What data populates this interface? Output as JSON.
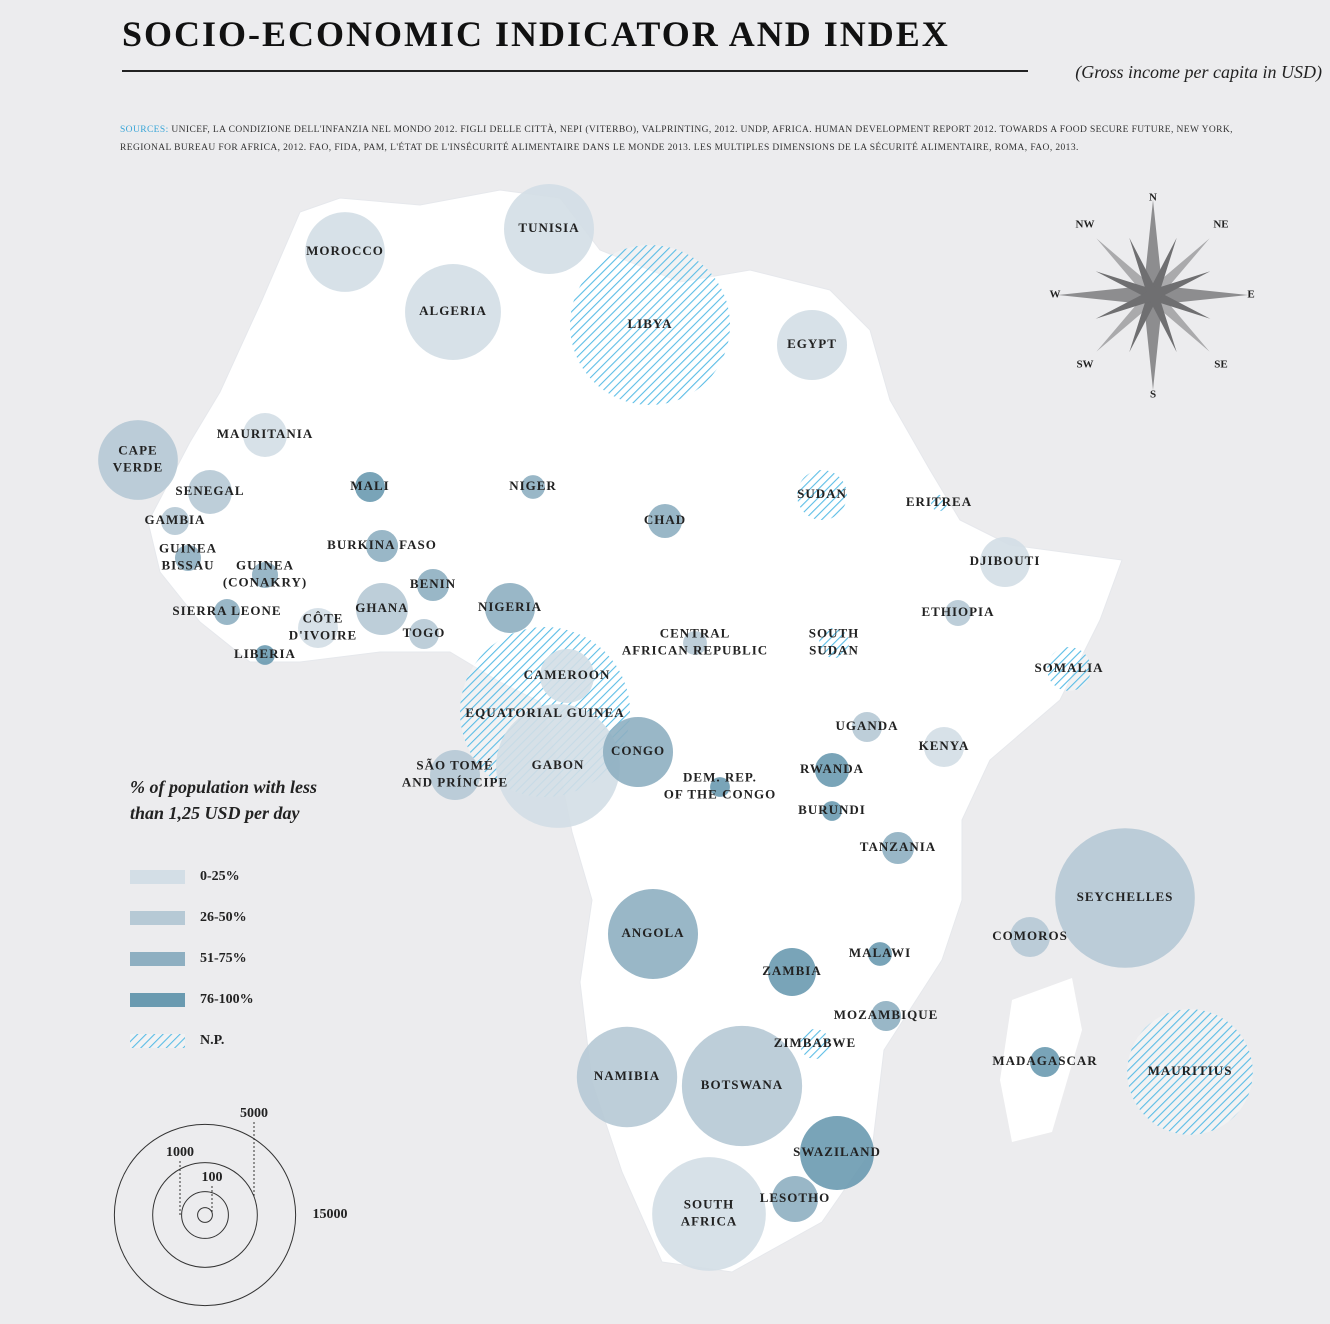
{
  "header": {
    "title": "SOCIO-ECONOMIC INDICATOR AND INDEX",
    "subtitle": "(Gross income per capita in USD)",
    "sources_label": "SOURCES:",
    "sources": "UNICEF, LA CONDIZIONE DELL'INFANZIA NEL MONDO 2012. FIGLI DELLE CITTÀ, NEPI (VITERBO), VALPRINTING, 2012. UNDP, AFRICA. HUMAN DEVELOPMENT REPORT 2012. TOWARDS A FOOD SECURE FUTURE, NEW YORK, REGIONAL BUREAU FOR AFRICA, 2012. FAO, FIDA, PAM, L'ÉTAT DE L'INSÉCURITÉ ALIMENTAIRE DANS LE MONDE 2013. LES MULTIPLES DIMENSIONS DE LA SÉCURITÉ ALIMENTAIRE, ROMA, FAO, 2013."
  },
  "compass": [
    "N",
    "NE",
    "E",
    "SE",
    "S",
    "SW",
    "W",
    "NW"
  ],
  "legend": {
    "title": [
      "% of population with less",
      "than 1,25 USD per day"
    ],
    "classes": [
      {
        "label": "0-25%",
        "color": "#d3dee6",
        "hatched": false
      },
      {
        "label": "26-50%",
        "color": "#b6c9d5",
        "hatched": false
      },
      {
        "label": "51-75%",
        "color": "#8eafc1",
        "hatched": false
      },
      {
        "label": "76-100%",
        "color": "#6a9ab0",
        "hatched": false
      },
      {
        "label": "N.P.",
        "color": "#5bbde6",
        "hatched": true
      }
    ]
  },
  "size_legend": {
    "values": [
      100,
      1000,
      5000,
      15000
    ]
  },
  "countries": [
    {
      "name": [
        "MOROCCO"
      ],
      "income": 2900,
      "class": 0
    },
    {
      "name": [
        "TUNISIA"
      ],
      "income": 3700,
      "class": 0
    },
    {
      "name": [
        "ALGERIA"
      ],
      "income": 4200,
      "class": 0
    },
    {
      "name": [
        "LIBYA"
      ],
      "income": 11700,
      "class": 4
    },
    {
      "name": [
        "EGYPT"
      ],
      "income": 2240,
      "class": 0
    },
    {
      "name": [
        "MAURITANIA"
      ],
      "income": 880,
      "class": 0
    },
    {
      "name": [
        "CAPE",
        "VERDE"
      ],
      "income": 2900,
      "class": 1
    },
    {
      "name": [
        "SENEGAL"
      ],
      "income": 880,
      "class": 1
    },
    {
      "name": [
        "MALI"
      ],
      "income": 410,
      "class": 3
    },
    {
      "name": [
        "NIGER"
      ],
      "income": 260,
      "class": 2
    },
    {
      "name": [
        "GAMBIA"
      ],
      "income": 360,
      "class": 1
    },
    {
      "name": [
        "CHAD"
      ],
      "income": 530,
      "class": 2
    },
    {
      "name": [
        "SUDAN"
      ],
      "income": 1140,
      "class": 4
    },
    {
      "name": [
        "ERITREA"
      ],
      "income": 120,
      "class": 4
    },
    {
      "name": [
        "GUINEA",
        "BISSAU"
      ],
      "income": 310,
      "class": 2
    },
    {
      "name": [
        "GUINEA",
        "(CONAKRY)"
      ],
      "income": 310,
      "class": 2
    },
    {
      "name": [
        "BURKINA FASO"
      ],
      "income": 470,
      "class": 2
    },
    {
      "name": [
        "DJIBOUTI"
      ],
      "income": 1140,
      "class": 0
    },
    {
      "name": [
        "BENIN"
      ],
      "income": 470,
      "class": 2
    },
    {
      "name": [
        "SIERRA LEONE"
      ],
      "income": 310,
      "class": 2
    },
    {
      "name": [
        "GHANA"
      ],
      "income": 1230,
      "class": 1
    },
    {
      "name": [
        "NIGERIA"
      ],
      "income": 1140,
      "class": 2
    },
    {
      "name": [
        "ETHIOPIA"
      ],
      "income": 310,
      "class": 1
    },
    {
      "name": [
        "CÔTE",
        "D'IVOIRE"
      ],
      "income": 730,
      "class": 0
    },
    {
      "name": [
        "TOGO"
      ],
      "income": 410,
      "class": 1
    },
    {
      "name": [
        "CENTRAL",
        "AFRICAN REPUBLIC"
      ],
      "income": 260,
      "class": 1
    },
    {
      "name": [
        "SOUTH",
        "SUDAN"
      ],
      "income": 410,
      "class": 4
    },
    {
      "name": [
        "LIBERIA"
      ],
      "income": 180,
      "class": 3
    },
    {
      "name": [
        "SOMALIA"
      ],
      "income": 880,
      "class": 4
    },
    {
      "name": [
        "EQUATORIAL GUINEA"
      ],
      "income": 13200,
      "class": 4
    },
    {
      "name": [
        "CAMEROON"
      ],
      "income": 1330,
      "class": 0
    },
    {
      "name": [
        "GABON"
      ],
      "income": 7000,
      "class": 0
    },
    {
      "name": [
        "SÃO TOMÉ",
        "AND PRÍNCIPE"
      ],
      "income": 1140,
      "class": 1
    },
    {
      "name": [
        "CONGO"
      ],
      "income": 2240,
      "class": 2
    },
    {
      "name": [
        "UGANDA"
      ],
      "income": 410,
      "class": 1
    },
    {
      "name": [
        "KENYA"
      ],
      "income": 730,
      "class": 0
    },
    {
      "name": [
        "RWANDA"
      ],
      "income": 530,
      "class": 3
    },
    {
      "name": [
        "DEM. REP.",
        "OF THE CONGO"
      ],
      "income": 180,
      "class": 3
    },
    {
      "name": [
        "BURUNDI"
      ],
      "income": 180,
      "class": 3
    },
    {
      "name": [
        "TANZANIA"
      ],
      "income": 470,
      "class": 2
    },
    {
      "name": [
        "SEYCHELLES"
      ],
      "income": 8900,
      "class": 1
    },
    {
      "name": [
        "ANGOLA"
      ],
      "income": 3700,
      "class": 2
    },
    {
      "name": [
        "COMOROS"
      ],
      "income": 730,
      "class": 1
    },
    {
      "name": [
        "MALAWI"
      ],
      "income": 260,
      "class": 3
    },
    {
      "name": [
        "ZAMBIA"
      ],
      "income": 1050,
      "class": 3
    },
    {
      "name": [
        "MOZAMBIQUE"
      ],
      "income": 410,
      "class": 2
    },
    {
      "name": [
        "ZIMBABWE"
      ],
      "income": 410,
      "class": 4
    },
    {
      "name": [
        "MADAGASCAR"
      ],
      "income": 410,
      "class": 3
    },
    {
      "name": [
        "MAURITIUS"
      ],
      "income": 7200,
      "class": 4
    },
    {
      "name": [
        "NAMIBIA"
      ],
      "income": 4600,
      "class": 1
    },
    {
      "name": [
        "BOTSWANA"
      ],
      "income": 6600,
      "class": 1
    },
    {
      "name": [
        "SWAZILAND"
      ],
      "income": 2500,
      "class": 3
    },
    {
      "name": [
        "LESOTHO"
      ],
      "income": 970,
      "class": 2
    },
    {
      "name": [
        "SOUTH",
        "AFRICA"
      ],
      "income": 5900,
      "class": 0
    }
  ]
}
